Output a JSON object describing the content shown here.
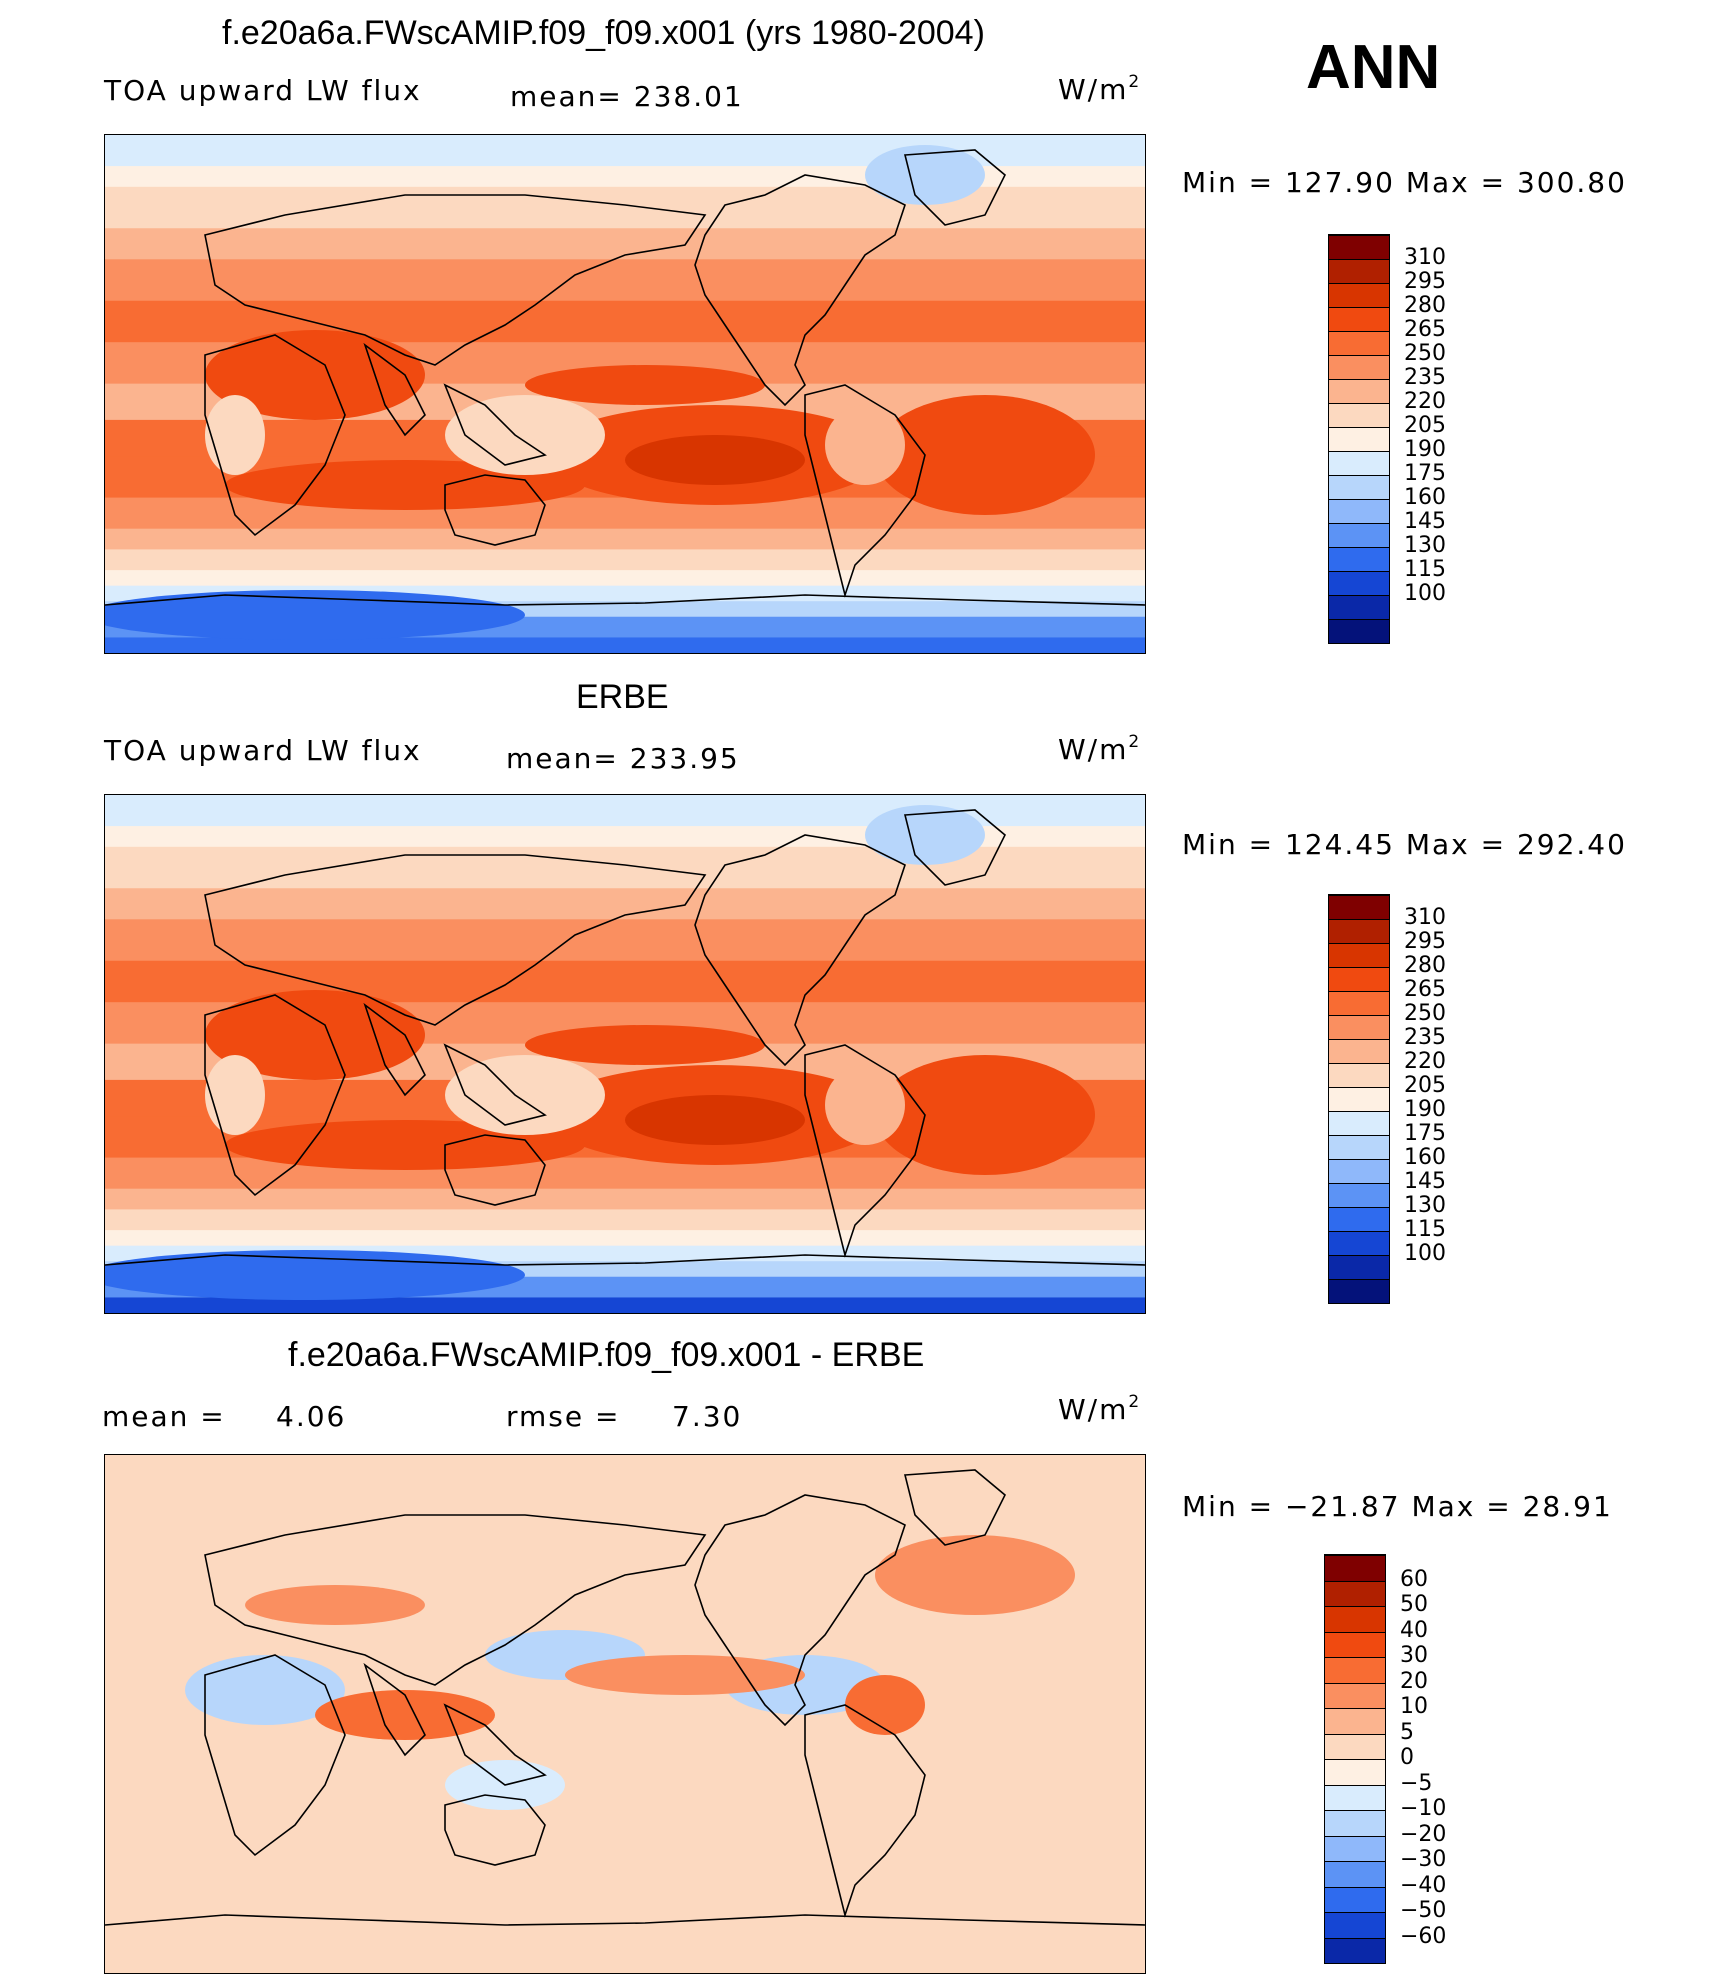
{
  "header": {
    "main_title": "f.e20a6a.FWscAMIP.f09_f09.x001 (yrs 1980-2004)",
    "season": "ANN"
  },
  "panels": [
    {
      "title": "f.e20a6a.FWscAMIP.f09_f09.x001 (yrs 1980-2004)",
      "left_label": "TOA upward LW flux",
      "center_label": "mean= 238.01",
      "units_base": "W/m",
      "units_exp": "2",
      "minmax": "Min = 127.90 Max = 300.80"
    },
    {
      "title": "ERBE",
      "left_label": "TOA upward LW flux",
      "center_label": "mean= 233.95",
      "units_base": "W/m",
      "units_exp": "2",
      "minmax": "Min = 124.45 Max = 292.40"
    },
    {
      "title": "f.e20a6a.FWscAMIP.f09_f09.x001 - ERBE",
      "left_label": "mean =",
      "left_value": "4.06",
      "center_label": "rmse =",
      "center_value": "7.30",
      "units_base": "W/m",
      "units_exp": "2",
      "minmax": "Min = −21.87 Max =  28.91"
    }
  ],
  "chart_data": [
    {
      "type": "heatmap",
      "title": "f.e20a6a.FWscAMIP.f09_f09.x001 (yrs 1980-2004)",
      "variable": "TOA upward LW flux",
      "units": "W/m2",
      "mean": 238.01,
      "min": 127.9,
      "max": 300.8,
      "levels": [
        310,
        295,
        280,
        265,
        250,
        235,
        220,
        205,
        190,
        175,
        160,
        145,
        130,
        115,
        100
      ],
      "colors": [
        "#7f0000",
        "#b02000",
        "#d83500",
        "#f04a10",
        "#f86c33",
        "#fa8f60",
        "#fbb48f",
        "#fcd9c0",
        "#fef0e3",
        "#d9ecfd",
        "#b7d6fb",
        "#8fb8fa",
        "#5c93f5",
        "#2f6bee",
        "#1546d4",
        "#0a28a8",
        "#04127a"
      ]
    },
    {
      "type": "heatmap",
      "title": "ERBE",
      "variable": "TOA upward LW flux",
      "units": "W/m2",
      "mean": 233.95,
      "min": 124.45,
      "max": 292.4,
      "levels": [
        310,
        295,
        280,
        265,
        250,
        235,
        220,
        205,
        190,
        175,
        160,
        145,
        130,
        115,
        100
      ],
      "colors": [
        "#7f0000",
        "#b02000",
        "#d83500",
        "#f04a10",
        "#f86c33",
        "#fa8f60",
        "#fbb48f",
        "#fcd9c0",
        "#fef0e3",
        "#d9ecfd",
        "#b7d6fb",
        "#8fb8fa",
        "#5c93f5",
        "#2f6bee",
        "#1546d4",
        "#0a28a8",
        "#04127a"
      ]
    },
    {
      "type": "heatmap",
      "title": "f.e20a6a.FWscAMIP.f09_f09.x001 - ERBE",
      "units": "W/m2",
      "mean": 4.06,
      "rmse": 7.3,
      "min": -21.87,
      "max": 28.91,
      "levels": [
        "60",
        "50",
        "40",
        "30",
        "20",
        "10",
        "5",
        "0",
        "−5",
        "−10",
        "−20",
        "−30",
        "−40",
        "−50",
        "−60"
      ],
      "colors": [
        "#7f0000",
        "#b02000",
        "#d83500",
        "#f04a10",
        "#f86c33",
        "#fa8f60",
        "#fbb48f",
        "#fcd9c0",
        "#fef0e3",
        "#d9ecfd",
        "#b7d6fb",
        "#8fb8fa",
        "#5c93f5",
        "#2f6bee",
        "#1546d4",
        "#0a28a8"
      ]
    }
  ]
}
